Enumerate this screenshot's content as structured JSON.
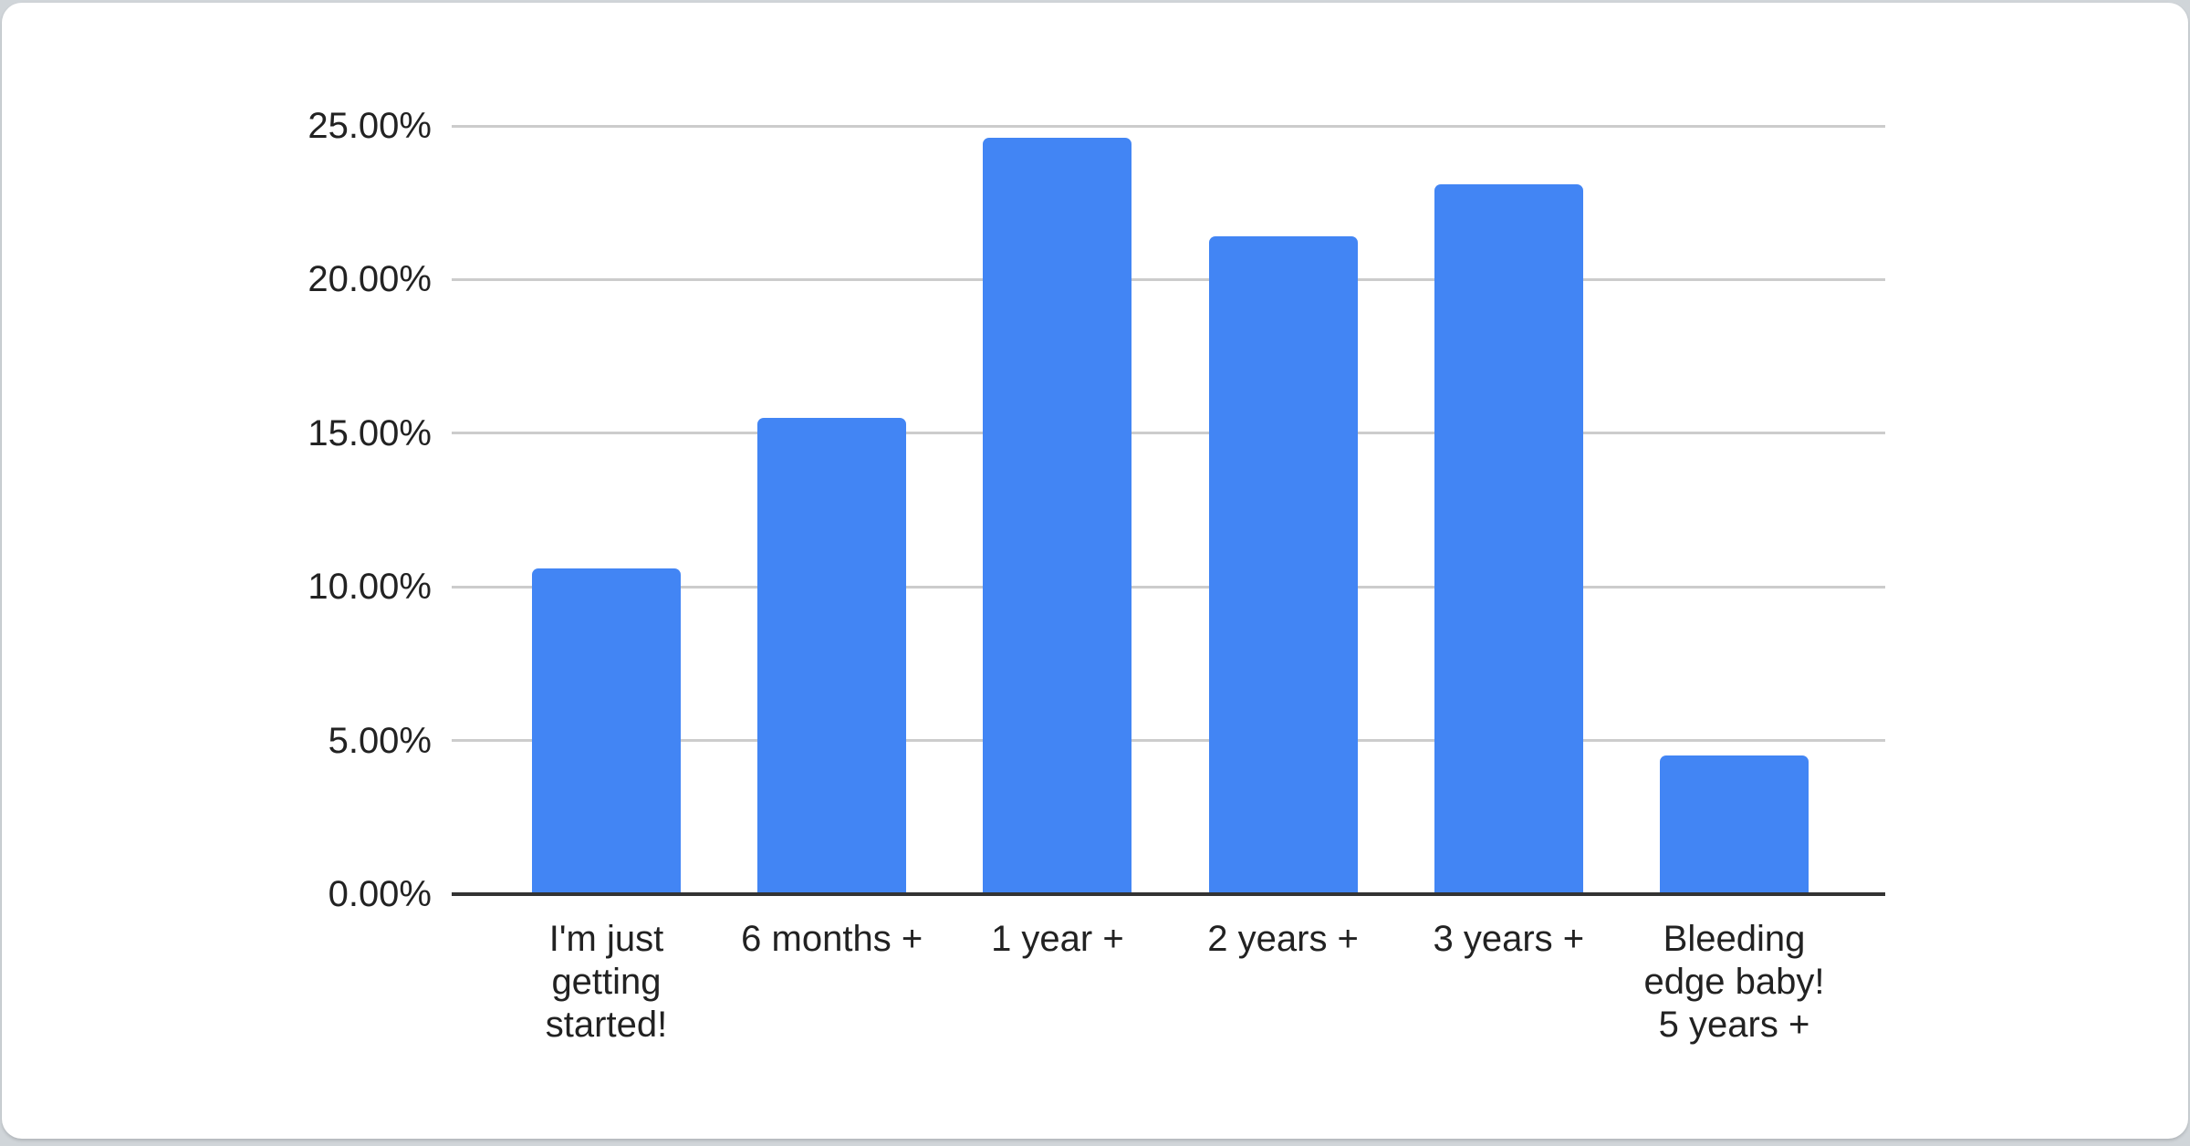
{
  "chart_data": {
    "type": "bar",
    "title": "",
    "xlabel": "",
    "ylabel": "",
    "categories": [
      "I'm just getting started!",
      "6 months +",
      "1 year +",
      "2 years +",
      "3 years +",
      "Bleeding edge baby! 5 years +"
    ],
    "category_lines": [
      "I'm just\ngetting\nstarted!",
      "6 months +",
      "1 year +",
      "2 years +",
      "3 years +",
      "Bleeding\nedge baby!\n5 years +"
    ],
    "values": [
      10.6,
      15.5,
      24.6,
      21.4,
      23.1,
      4.5
    ],
    "value_unit": "%",
    "y_ticks": [
      "0.00%",
      "5.00%",
      "10.00%",
      "15.00%",
      "20.00%",
      "25.00%"
    ],
    "y_tick_values": [
      0,
      5,
      10,
      15,
      20,
      25
    ],
    "ylim": [
      0,
      25
    ],
    "grid": true,
    "legend": "none",
    "colors": {
      "bar": "#4285F4",
      "gridline": "#CCCCCC",
      "axis_line": "#333333",
      "text": "#222222",
      "card_background": "#FFFFFF",
      "page_background": "#D0D5D9"
    }
  }
}
